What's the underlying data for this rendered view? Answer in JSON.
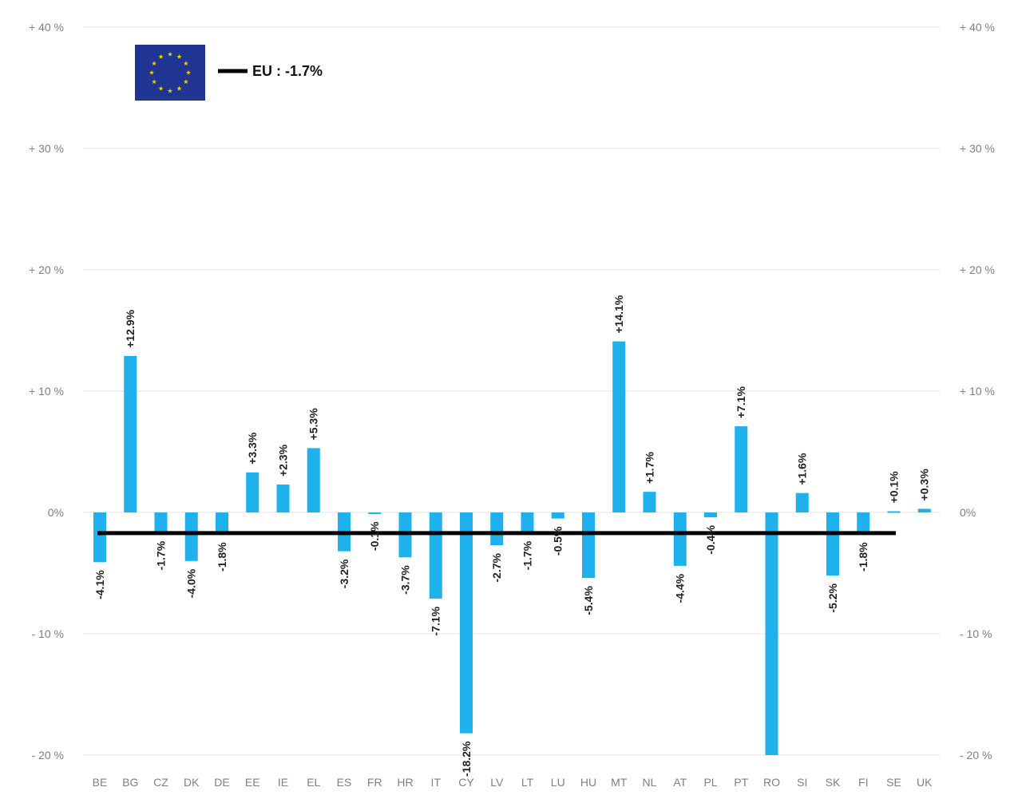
{
  "chart_data": {
    "type": "bar",
    "categories": [
      "BE",
      "BG",
      "CZ",
      "DK",
      "DE",
      "EE",
      "IE",
      "EL",
      "ES",
      "FR",
      "HR",
      "IT",
      "CY",
      "LV",
      "LT",
      "LU",
      "HU",
      "MT",
      "NL",
      "AT",
      "PL",
      "PT",
      "RO",
      "SI",
      "SK",
      "FI",
      "SE",
      "UK"
    ],
    "values": [
      -4.1,
      12.9,
      -1.7,
      -4.0,
      -1.8,
      3.3,
      2.3,
      5.3,
      -3.2,
      -0.1,
      -3.7,
      -7.1,
      -18.2,
      -2.7,
      -1.7,
      -0.5,
      -5.4,
      14.1,
      1.7,
      -4.4,
      -0.4,
      7.1,
      -20.0,
      1.6,
      -5.2,
      -1.8,
      0.1,
      0.3
    ],
    "data_labels": [
      "-4.1%",
      "+12.9%",
      "-1.7%",
      "-4.0%",
      "-1.8%",
      "+3.3%",
      "+2.3%",
      "+5.3%",
      "-3.2%",
      "-0.1%",
      "-3.7%",
      "-7.1%",
      "-18.2%",
      "-2.7%",
      "-1.7%",
      "-0.5%",
      "-5.4%",
      "+14.1%",
      "+1.7%",
      "-4.4%",
      "-0.4%",
      "+7.1%",
      "",
      "+1.6%",
      "-5.2%",
      "-1.8%",
      "+0.1%",
      "+0.3%"
    ],
    "ylim": [
      -20,
      40
    ],
    "yticks": [
      40,
      30,
      20,
      10,
      0,
      -10,
      -20
    ],
    "ytick_labels": [
      "+ 40 %",
      "+ 30 %",
      "+ 20 %",
      "+ 10 %",
      "0%",
      "- 10 %",
      "- 20 %"
    ],
    "grid": true,
    "reference_line": {
      "value": -1.7,
      "label": "EU : -1.7%"
    },
    "legend_position": "top-left",
    "bar_color": "#1eb1eb",
    "line_color": "#000000",
    "flag_color": "#1f3591",
    "star_color": "#ffcc00",
    "title": "",
    "xlabel": "",
    "ylabel": ""
  }
}
